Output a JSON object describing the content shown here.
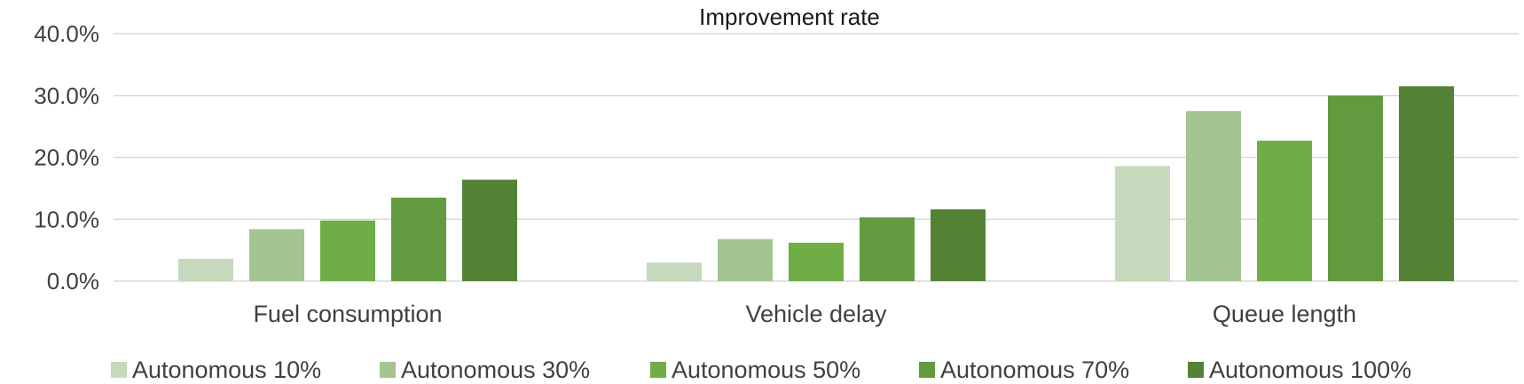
{
  "chart_data": {
    "type": "bar",
    "title": "Improvement  rate",
    "xlabel": "",
    "ylabel": "",
    "categories": [
      "Fuel consumption",
      "Vehicle delay",
      "Queue length"
    ],
    "ylim": [
      0,
      0.4
    ],
    "yticks": [
      0,
      0.1,
      0.2,
      0.3,
      0.4
    ],
    "ytick_labels": [
      "0.0%",
      "10.0%",
      "20.0%",
      "30.0%",
      "40.0%"
    ],
    "grid": true,
    "legend": "bottom",
    "series": [
      {
        "name": "Autonomous 10%",
        "color": "#c6d9bc",
        "values": [
          0.036,
          0.03,
          0.186
        ]
      },
      {
        "name": "Autonomous 30%",
        "color": "#a4c491",
        "values": [
          0.084,
          0.068,
          0.275
        ]
      },
      {
        "name": "Autonomous 50%",
        "color": "#70ad47",
        "values": [
          0.098,
          0.062,
          0.227
        ]
      },
      {
        "name": "Autonomous 70%",
        "color": "#629a3f",
        "values": [
          0.135,
          0.103,
          0.3
        ]
      },
      {
        "name": "Autonomous 100%",
        "color": "#548235",
        "values": [
          0.164,
          0.116,
          0.315
        ]
      }
    ]
  }
}
